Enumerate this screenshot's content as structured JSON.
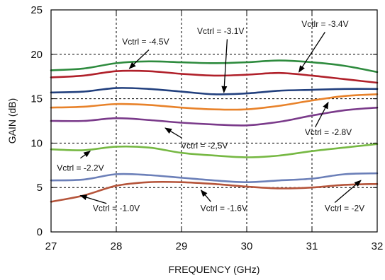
{
  "chart_data": {
    "type": "line",
    "xlabel": "FREQUENCY (GHz)",
    "ylabel": "GAIN (dB)",
    "xlim": [
      27,
      32
    ],
    "ylim": [
      0,
      25
    ],
    "x_ticks": [
      27,
      28,
      29,
      30,
      31,
      32
    ],
    "y_ticks": [
      0,
      5,
      10,
      15,
      20,
      25
    ],
    "grid": "dashed",
    "legend": "none",
    "series": [
      {
        "color": "#2e8b3e",
        "x": [
          27,
          27.5,
          28,
          28.5,
          29,
          29.5,
          30,
          30.5,
          31,
          31.5,
          32
        ],
        "y": [
          18.2,
          18.4,
          19.0,
          19.2,
          19.1,
          19.0,
          19.1,
          19.3,
          19.1,
          18.7,
          18.0
        ]
      },
      {
        "color": "#b0202a",
        "x": [
          27,
          27.5,
          28,
          28.5,
          29,
          29.5,
          30,
          30.5,
          31,
          31.5,
          32
        ],
        "y": [
          17.4,
          17.6,
          18.1,
          18.1,
          17.8,
          17.6,
          17.7,
          17.9,
          17.6,
          17.2,
          16.8
        ]
      },
      {
        "color": "#22407e",
        "x": [
          27,
          27.5,
          28,
          28.5,
          29,
          29.5,
          30,
          30.5,
          31,
          31.5,
          32
        ],
        "y": [
          15.7,
          15.8,
          16.2,
          16.1,
          15.8,
          15.5,
          15.6,
          15.9,
          16.0,
          16.1,
          16.1
        ]
      },
      {
        "color": "#e8822a",
        "x": [
          27,
          27.5,
          28,
          28.5,
          29,
          29.5,
          30,
          30.5,
          31,
          31.5,
          32
        ],
        "y": [
          14.0,
          14.1,
          14.4,
          14.3,
          14.0,
          13.8,
          13.8,
          14.2,
          14.8,
          15.3,
          15.5
        ]
      },
      {
        "color": "#7a3a8a",
        "x": [
          27,
          27.5,
          28,
          28.5,
          29,
          29.5,
          30,
          30.5,
          31,
          31.5,
          32
        ],
        "y": [
          12.5,
          12.5,
          12.8,
          12.6,
          12.3,
          12.1,
          12.0,
          12.4,
          13.1,
          13.7,
          14.0
        ]
      },
      {
        "color": "#76b843",
        "x": [
          27,
          27.5,
          28,
          28.5,
          29,
          29.5,
          30,
          30.5,
          31,
          31.5,
          32
        ],
        "y": [
          9.3,
          9.2,
          9.6,
          9.5,
          8.9,
          8.6,
          8.4,
          8.6,
          9.1,
          9.5,
          9.9
        ]
      },
      {
        "color": "#6b7fb8",
        "x": [
          27,
          27.5,
          28,
          28.5,
          29,
          29.5,
          30,
          30.5,
          31,
          31.5,
          32
        ],
        "y": [
          5.8,
          5.9,
          6.5,
          6.4,
          6.1,
          5.8,
          5.6,
          5.8,
          6.0,
          6.5,
          6.6
        ]
      },
      {
        "color": "#b5543a",
        "x": [
          27,
          27.5,
          28,
          28.5,
          29,
          29.5,
          30,
          30.5,
          31,
          31.5,
          32
        ],
        "y": [
          3.4,
          4.1,
          5.2,
          5.6,
          5.6,
          5.4,
          5.1,
          4.9,
          5.0,
          5.3,
          5.4
        ]
      }
    ],
    "annotations": [
      {
        "text": "Vctrl = -4.5V",
        "text_x": 28.45,
        "text_y": 21.1,
        "arrow_from": [
          28.5,
          20.5
        ],
        "arrow_to": [
          28.2,
          18.4
        ]
      },
      {
        "text": "Vctrl = -3.1V",
        "text_x": 29.6,
        "text_y": 22.3,
        "arrow_from": [
          29.7,
          21.7
        ],
        "arrow_to": [
          29.65,
          15.7
        ]
      },
      {
        "text": "Vctlr = -3.4V",
        "text_x": 31.2,
        "text_y": 23.1,
        "arrow_from": [
          31.2,
          22.5
        ],
        "arrow_to": [
          30.8,
          18.0
        ]
      },
      {
        "text": "Vctrl = -2.8V",
        "text_x": 31.25,
        "text_y": 10.9,
        "arrow_from": [
          31.05,
          11.8
        ],
        "arrow_to": [
          31.25,
          14.6
        ]
      },
      {
        "text": "Vctrl = -2,5V",
        "text_x": 29.35,
        "text_y": 9.4,
        "arrow_from": [
          29.0,
          10.6
        ],
        "arrow_to": [
          28.75,
          11.7
        ]
      },
      {
        "text": "Vctrl = -2.2V",
        "text_x": 27.45,
        "text_y": 6.9,
        "arrow_from": [
          27.45,
          8.3
        ],
        "arrow_to": [
          27.6,
          9.1
        ]
      },
      {
        "text": "Vctrl = -1.0V",
        "text_x": 28.0,
        "text_y": 2.35,
        "arrow_from": [
          27.85,
          3.2
        ],
        "arrow_to": [
          27.45,
          4.1
        ]
      },
      {
        "text": "Vctrl = -1.6V",
        "text_x": 29.65,
        "text_y": 2.35,
        "arrow_from": [
          29.45,
          3.4
        ],
        "arrow_to": [
          29.3,
          4.7
        ]
      },
      {
        "text": "Vctrl = -2V",
        "text_x": 31.5,
        "text_y": 2.35,
        "arrow_from": [
          31.35,
          3.3
        ],
        "arrow_to": [
          31.75,
          5.8
        ]
      }
    ]
  }
}
